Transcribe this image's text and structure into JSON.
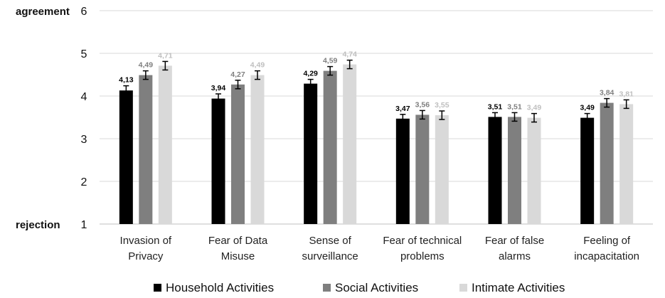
{
  "chart_data": {
    "type": "bar",
    "title": "",
    "xlabel": "",
    "ylabel_top": "agreement",
    "ylabel_bottom": "rejection",
    "ylim": [
      1,
      6
    ],
    "yticks": [
      "1",
      "2",
      "3",
      "4",
      "5",
      "6"
    ],
    "categories": [
      [
        "Invasion of",
        "Privacy"
      ],
      [
        "Fear of Data",
        "Misuse"
      ],
      [
        "Sense of",
        "surveillance"
      ],
      [
        "Fear of technical",
        "problems"
      ],
      [
        "Fear of false",
        "alarms"
      ],
      [
        "Feeling of",
        "incapacitation"
      ]
    ],
    "series": [
      {
        "name": "Household Activities",
        "color": "#000000",
        "label_color": "#000000",
        "values": [
          4.13,
          3.94,
          4.29,
          3.47,
          3.51,
          3.49
        ],
        "labels": [
          "4,13",
          "3,94",
          "4,29",
          "3,47",
          "3,51",
          "3,49"
        ],
        "errors": [
          0.11,
          0.11,
          0.1,
          0.1,
          0.1,
          0.1
        ]
      },
      {
        "name": "Social Activities",
        "color": "#7f7f7f",
        "label_color": "#7f7f7f",
        "values": [
          4.49,
          4.27,
          4.59,
          3.56,
          3.51,
          3.84
        ],
        "labels": [
          "4,49",
          "4,27",
          "4,59",
          "3,56",
          "3,51",
          "3,84"
        ],
        "errors": [
          0.1,
          0.1,
          0.1,
          0.1,
          0.1,
          0.1
        ]
      },
      {
        "name": "Intimate Activities",
        "color": "#d9d9d9",
        "label_color": "#bfbfbf",
        "values": [
          4.71,
          4.49,
          4.74,
          3.55,
          3.49,
          3.81
        ],
        "labels": [
          "4,71",
          "4,49",
          "4,74",
          "3,55",
          "3,49",
          "3,81"
        ],
        "errors": [
          0.1,
          0.1,
          0.1,
          0.1,
          0.1,
          0.1
        ]
      }
    ],
    "legend": {
      "position": "bottom",
      "items": [
        "Household Activities",
        "Social Activities",
        "Intimate Activities"
      ]
    },
    "grid": true
  }
}
